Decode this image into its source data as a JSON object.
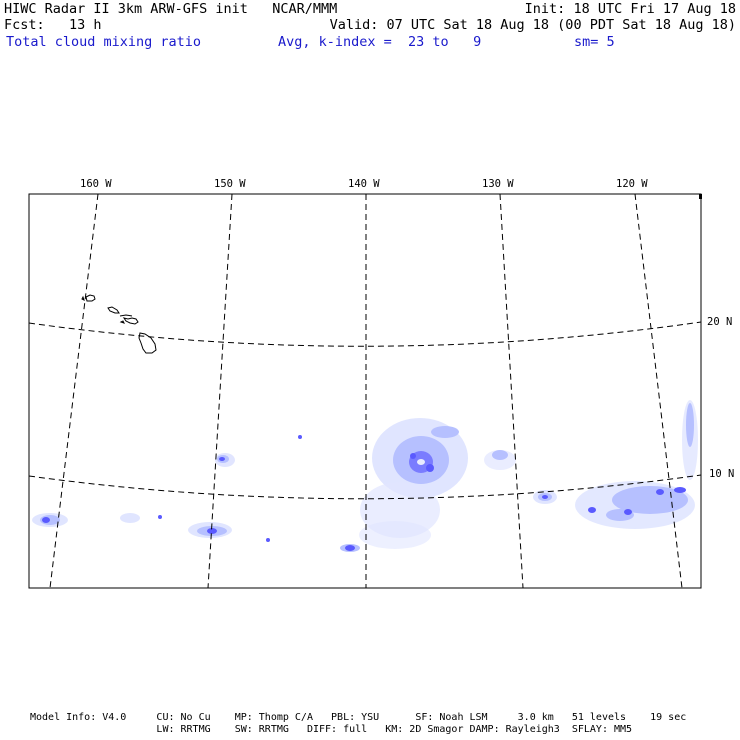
{
  "header": {
    "line1_left": "HIWC Radar II 3km ARW-GFS init   NCAR/MMM",
    "line1_right": "Init: 18 UTC Fri 17 Aug 18",
    "fcst": "Fcst:   13 h",
    "valid": "Valid: 07 UTC Sat 18 Aug 18 (00 PDT Sat 18 Aug 18)",
    "field": "Total cloud mixing ratio",
    "avg": "Avg, k-index =  23 to   9",
    "smooth": "sm= 5"
  },
  "map": {
    "lon_labels": [
      "160 W",
      "150 W",
      "140 W",
      "130 W",
      "120 W"
    ],
    "lat_labels": [
      "20 N",
      "10 N"
    ],
    "field_color": "#3333ff",
    "field_light_color": "#d6dcff",
    "coast_color": "#000000",
    "grid_style": "dashed"
  },
  "footer": {
    "line1": "Model Info: V4.0     CU: No Cu    MP: Thomp C/A   PBL: YSU      SF: Noah LSM     3.0 km   51 levels    19 sec",
    "line2": "                     LW: RRTMG    SW: RRTMG   DIFF: full   KM: 2D Smagor DAMP: Rayleigh3  SFLAY: MM5"
  }
}
